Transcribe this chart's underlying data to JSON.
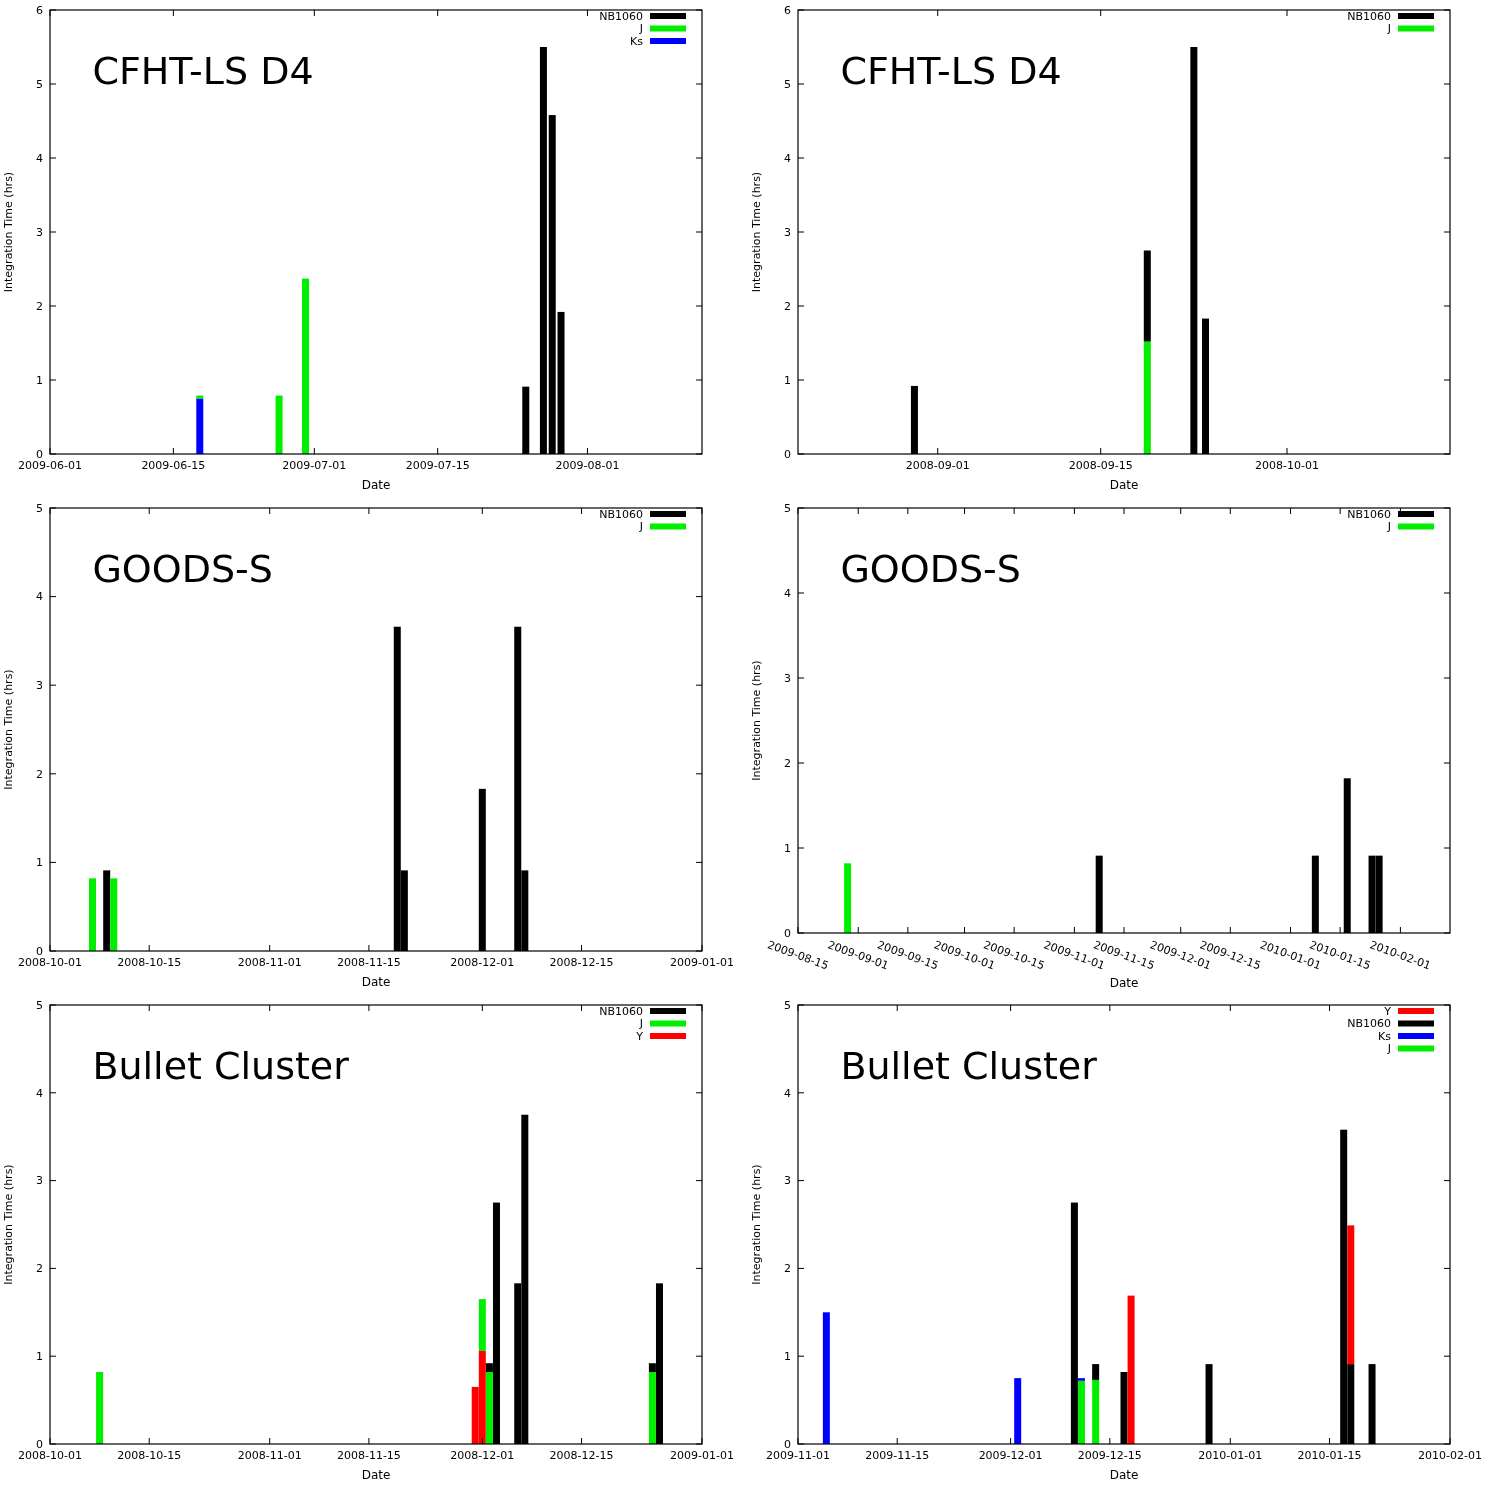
{
  "chart_data": [
    {
      "type": "bar",
      "stacked": true,
      "title": "CFHT-LS D4",
      "xlabel": "Date",
      "ylabel": "Integration Time (hrs)",
      "legend": "top right",
      "xlim": [
        "2009-06-01",
        "2009-08-14"
      ],
      "xticks": [
        "2009-06-01",
        "2009-06-15",
        "2009-07-01",
        "2009-07-15",
        "2009-08-01"
      ],
      "ylim": [
        0,
        6
      ],
      "yticks": [
        0,
        1,
        2,
        3,
        4,
        5,
        6
      ],
      "x": [
        "2009-06-18",
        "2009-06-27",
        "2009-06-30",
        "2009-07-25",
        "2009-07-27",
        "2009-07-28",
        "2009-07-29"
      ],
      "series": [
        {
          "name": "Ks",
          "color": "#0000ff",
          "values": [
            0.75,
            null,
            null,
            null,
            null,
            null,
            null
          ]
        },
        {
          "name": "J",
          "color": "#00ee00",
          "values": [
            0.04,
            0.79,
            2.37,
            null,
            null,
            null,
            null
          ]
        },
        {
          "name": "NB1060",
          "color": "#000000",
          "values": [
            null,
            null,
            null,
            0.91,
            5.5,
            4.58,
            1.92
          ]
        }
      ]
    },
    {
      "type": "bar",
      "stacked": true,
      "title": "CFHT-LS D4",
      "xlabel": "Date",
      "ylabel": "Integration Time (hrs)",
      "legend": "top right",
      "xlim": [
        "2008-08-20",
        "2008-10-15"
      ],
      "xticks": [
        "2008-09-01",
        "2008-09-15",
        "2008-10-01"
      ],
      "ylim": [
        0,
        6
      ],
      "yticks": [
        0,
        1,
        2,
        3,
        4,
        5,
        6
      ],
      "x": [
        "2008-08-30",
        "2008-09-19",
        "2008-09-23",
        "2008-09-24"
      ],
      "series": [
        {
          "name": "J",
          "color": "#00ee00",
          "values": [
            null,
            1.52,
            null,
            null
          ]
        },
        {
          "name": "NB1060",
          "color": "#000000",
          "values": [
            0.92,
            1.23,
            5.5,
            1.83
          ]
        }
      ]
    },
    {
      "type": "bar",
      "title": "GOODS-S",
      "xlabel": "Date",
      "ylabel": "Integration Time (hrs)",
      "legend": "top right",
      "xlim": [
        "2008-10-01",
        "2009-01-01"
      ],
      "xticks": [
        "2008-10-01",
        "2008-10-15",
        "2008-11-01",
        "2008-11-15",
        "2008-12-01",
        "2008-12-15",
        "2009-01-01"
      ],
      "ylim": [
        0,
        5
      ],
      "yticks": [
        0,
        1,
        2,
        3,
        4,
        5
      ],
      "series": [
        {
          "name": "NB1060",
          "color": "#000000",
          "x": [
            "2008-10-09",
            "2008-11-19",
            "2008-11-20",
            "2008-12-01",
            "2008-12-06",
            "2008-12-07"
          ],
          "values": [
            0.91,
            3.66,
            0.91,
            1.83,
            3.66,
            0.91
          ]
        },
        {
          "name": "J",
          "color": "#00ee00",
          "x": [
            "2008-10-07",
            "2008-10-10"
          ],
          "values": [
            0.82,
            0.82
          ]
        }
      ]
    },
    {
      "type": "bar",
      "title": "GOODS-S",
      "xlabel": "Date",
      "ylabel": "Integration Time (hrs)",
      "legend": "top right",
      "xlim": [
        "2009-08-15",
        "2010-02-15"
      ],
      "xticks": [
        "2009-08-15",
        "2009-09-01",
        "2009-09-15",
        "2009-10-01",
        "2009-10-15",
        "2009-11-01",
        "2009-11-15",
        "2009-12-01",
        "2009-12-15",
        "2010-01-01",
        "2010-01-15",
        "2010-02-01"
      ],
      "ylim": [
        0,
        5
      ],
      "yticks": [
        0,
        1,
        2,
        3,
        4,
        5
      ],
      "series": [
        {
          "name": "NB1060",
          "color": "#000000",
          "x": [
            "2009-11-08",
            "2010-01-08",
            "2010-01-17",
            "2010-01-24",
            "2010-01-26"
          ],
          "values": [
            0.91,
            0.91,
            1.82,
            0.91,
            0.91
          ]
        },
        {
          "name": "J",
          "color": "#00ee00",
          "x": [
            "2009-08-29"
          ],
          "values": [
            0.82
          ]
        }
      ]
    },
    {
      "type": "bar",
      "stacked": true,
      "title": "Bullet Cluster",
      "xlabel": "Date",
      "ylabel": "Integration Time (hrs)",
      "legend": "top right",
      "xlim": [
        "2008-10-01",
        "2009-01-01"
      ],
      "xticks": [
        "2008-10-01",
        "2008-10-15",
        "2008-11-01",
        "2008-11-15",
        "2008-12-01",
        "2008-12-15",
        "2009-01-01"
      ],
      "ylim": [
        0,
        5
      ],
      "yticks": [
        0,
        1,
        2,
        3,
        4,
        5
      ],
      "x": [
        "2008-10-08",
        "2008-11-30",
        "2008-12-01",
        "2008-12-02",
        "2008-12-03",
        "2008-12-06",
        "2008-12-07",
        "2008-12-25",
        "2008-12-26"
      ],
      "series": [
        {
          "name": "Y",
          "color": "#ff0000",
          "values": [
            null,
            0.65,
            1.06,
            null,
            null,
            null,
            null,
            null,
            null
          ]
        },
        {
          "name": "J",
          "color": "#00ee00",
          "values": [
            0.82,
            null,
            0.59,
            0.82,
            null,
            null,
            null,
            0.82,
            null
          ]
        },
        {
          "name": "NB1060",
          "color": "#000000",
          "values": [
            null,
            null,
            null,
            0.1,
            2.75,
            1.83,
            3.75,
            0.1,
            1.83
          ]
        }
      ]
    },
    {
      "type": "bar",
      "stacked": true,
      "title": "Bullet Cluster",
      "xlabel": "Date",
      "ylabel": "Integration Time (hrs)",
      "legend": "top right",
      "xlim": [
        "2009-11-01",
        "2010-02-01"
      ],
      "xticks": [
        "2009-11-01",
        "2009-11-15",
        "2009-12-01",
        "2009-12-15",
        "2010-01-01",
        "2010-01-15",
        "2010-02-01"
      ],
      "ylim": [
        0,
        5
      ],
      "yticks": [
        0,
        1,
        2,
        3,
        4,
        5
      ],
      "x": [
        "2009-11-05",
        "2009-12-02",
        "2009-12-10",
        "2009-12-11",
        "2009-12-13",
        "2009-12-17",
        "2009-12-18",
        "2009-12-29",
        "2010-01-17",
        "2010-01-18",
        "2010-01-21"
      ],
      "series": [
        {
          "name": "J",
          "color": "#00ee00",
          "values": [
            null,
            null,
            null,
            0.72,
            0.73,
            null,
            null,
            null,
            null,
            null,
            null
          ]
        },
        {
          "name": "Ks",
          "color": "#0000ff",
          "values": [
            1.5,
            0.75,
            null,
            0.03,
            null,
            null,
            null,
            null,
            null,
            null,
            null
          ]
        },
        {
          "name": "NB1060",
          "color": "#000000",
          "values": [
            null,
            null,
            2.75,
            null,
            0.18,
            0.82,
            null,
            0.91,
            3.58,
            0.91,
            0.91
          ]
        },
        {
          "name": "Y",
          "color": "#ff0000",
          "values": [
            null,
            null,
            null,
            null,
            null,
            null,
            1.69,
            null,
            null,
            1.58,
            null
          ]
        }
      ]
    }
  ]
}
